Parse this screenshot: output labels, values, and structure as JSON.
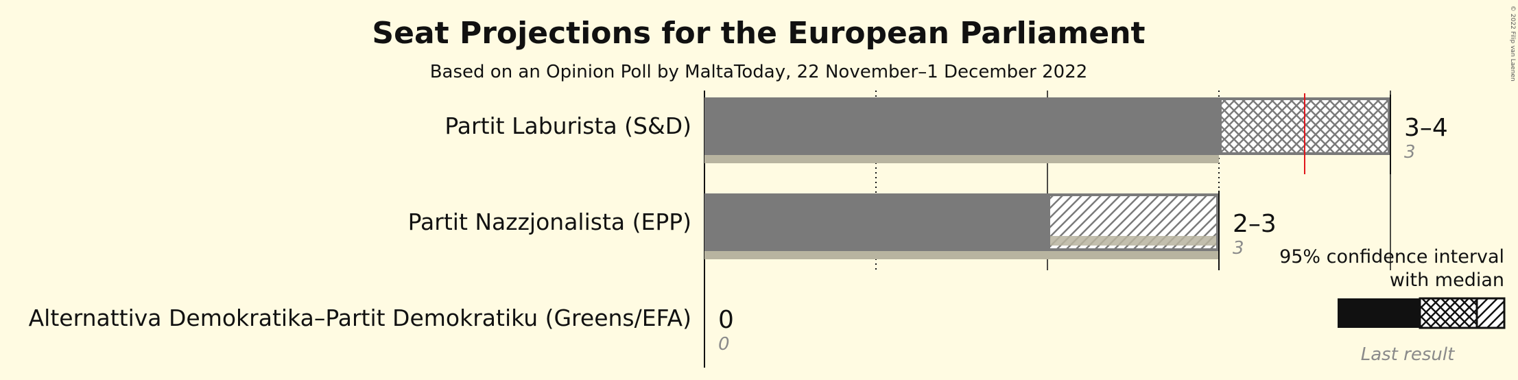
{
  "chart_data": {
    "type": "bar",
    "title": "Seat Projections for the European Parliament",
    "subtitle": "Based on an Opinion Poll by MaltaToday, 22 November–1 December 2022",
    "xlim": [
      0,
      4
    ],
    "parties": [
      {
        "name": "Partit Laburista (S&D)",
        "ci_low": 3,
        "ci_high": 4,
        "median": 3.5,
        "last_result": 3,
        "range_label": "3–4",
        "last_label": "3"
      },
      {
        "name": "Partit Nazzjonalista (EPP)",
        "ci_low": 2,
        "ci_high": 3,
        "median": 2,
        "last_result": 3,
        "range_label": "2–3",
        "last_label": "3"
      },
      {
        "name": "Alternattiva Demokratika–Partit Demokratiku (Greens/EFA)",
        "ci_low": 0,
        "ci_high": 0,
        "median": 0,
        "last_result": 0,
        "range_label": "0",
        "last_label": "0"
      }
    ],
    "legend": {
      "line1": "95% confidence interval",
      "line2": "with median",
      "last": "Last result"
    }
  },
  "copyright": "© 2022 Filip van Laenen",
  "colors": {
    "background": "#fffbe2",
    "bar": "#7a7a7a",
    "last_result": "#b8b4a0",
    "median": "#e0161b",
    "legend_bar": "#111111",
    "legend_last": "#8a8876"
  }
}
